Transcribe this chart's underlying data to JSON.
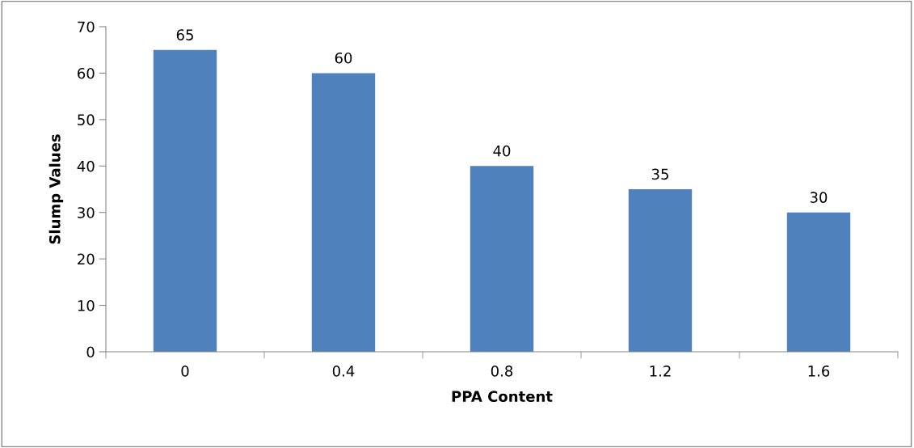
{
  "chart_data": {
    "type": "bar",
    "xlabel": "PPA Content",
    "ylabel": "Slump Values",
    "categories": [
      "0",
      "0.4",
      "0.8",
      "1.2",
      "1.6"
    ],
    "values": [
      65,
      60,
      40,
      35,
      30
    ],
    "color": "#4f81bd",
    "ylim": [
      0,
      70
    ],
    "yticks": [
      0,
      10,
      20,
      30,
      40,
      50,
      60,
      70
    ],
    "grid": false,
    "data_labels": true
  }
}
